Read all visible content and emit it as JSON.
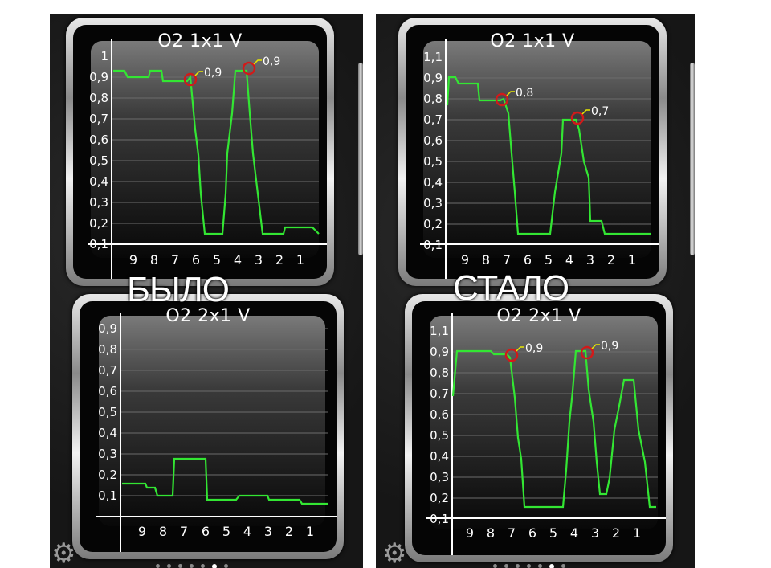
{
  "colors": {
    "trace": "#33e633",
    "marker": "#d11a1a",
    "annotation": "#e8e800"
  },
  "left": {
    "caption": "БЫЛО",
    "top_chart": {
      "title": "O2 1x1  V",
      "y_ticks": [
        "1",
        "0,9",
        "0,8",
        "0,7",
        "0,6",
        "0,5",
        "0,4",
        "0,3",
        "0,2",
        "0,1"
      ],
      "x_ticks": [
        "9",
        "8",
        "7",
        "6",
        "5",
        "4",
        "3",
        "2",
        "1"
      ],
      "markers": [
        {
          "label": "0,9"
        },
        {
          "label": "0,9"
        }
      ]
    },
    "bottom_chart": {
      "title": "O2 2x1  V",
      "y_ticks": [
        "0,9",
        "0,8",
        "0,7",
        "0,6",
        "0,5",
        "0,4",
        "0,3",
        "0,2",
        "0,1"
      ],
      "x_ticks": [
        "9",
        "8",
        "7",
        "6",
        "5",
        "4",
        "3",
        "2",
        "1"
      ]
    }
  },
  "right": {
    "caption": "СТАЛО",
    "top_chart": {
      "title": "O2 1x1  V",
      "y_ticks": [
        "1,1",
        "0,9",
        "0,8",
        "0,7",
        "0,6",
        "0,5",
        "0,4",
        "0,3",
        "0,2",
        "0,1"
      ],
      "x_ticks": [
        "9",
        "8",
        "7",
        "6",
        "5",
        "4",
        "3",
        "2",
        "1"
      ],
      "markers": [
        {
          "label": "0,8"
        },
        {
          "label": "0,7"
        }
      ]
    },
    "bottom_chart": {
      "title": "O2 2x1  V",
      "y_ticks": [
        "1,1",
        "0,9",
        "0,8",
        "0,7",
        "0,6",
        "0,5",
        "0,4",
        "0,3",
        "0,2",
        "0,1"
      ],
      "x_ticks": [
        "9",
        "8",
        "7",
        "6",
        "5",
        "4",
        "3",
        "2",
        "1"
      ],
      "markers": [
        {
          "label": "0,9"
        },
        {
          "label": "0,9"
        }
      ]
    }
  },
  "icons": {
    "settings": "gear-icon"
  },
  "pager": {
    "count": 7,
    "active": 5
  }
}
